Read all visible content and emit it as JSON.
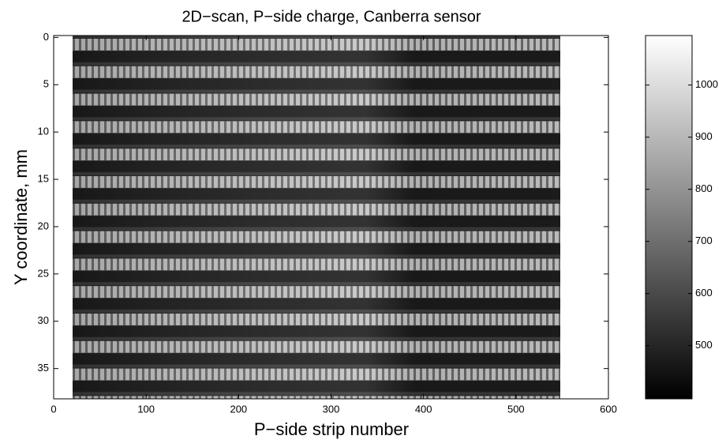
{
  "chart_data": {
    "type": "image",
    "title": "2D−scan, P−side charge, Canberra sensor",
    "xlabel": "P−side strip number",
    "ylabel": "Y coordinate, mm",
    "xlim": [
      0,
      600
    ],
    "xticks": [
      0,
      100,
      200,
      300,
      400,
      500,
      600
    ],
    "ylim": [
      -0.2,
      38.2
    ],
    "yticks": [
      0,
      5,
      10,
      15,
      20,
      25,
      30,
      35
    ],
    "y_reversed": true,
    "colormap": "gray",
    "clim": [
      398,
      1095
    ],
    "cticks": [
      500,
      600,
      700,
      800,
      900,
      1000
    ]
  }
}
